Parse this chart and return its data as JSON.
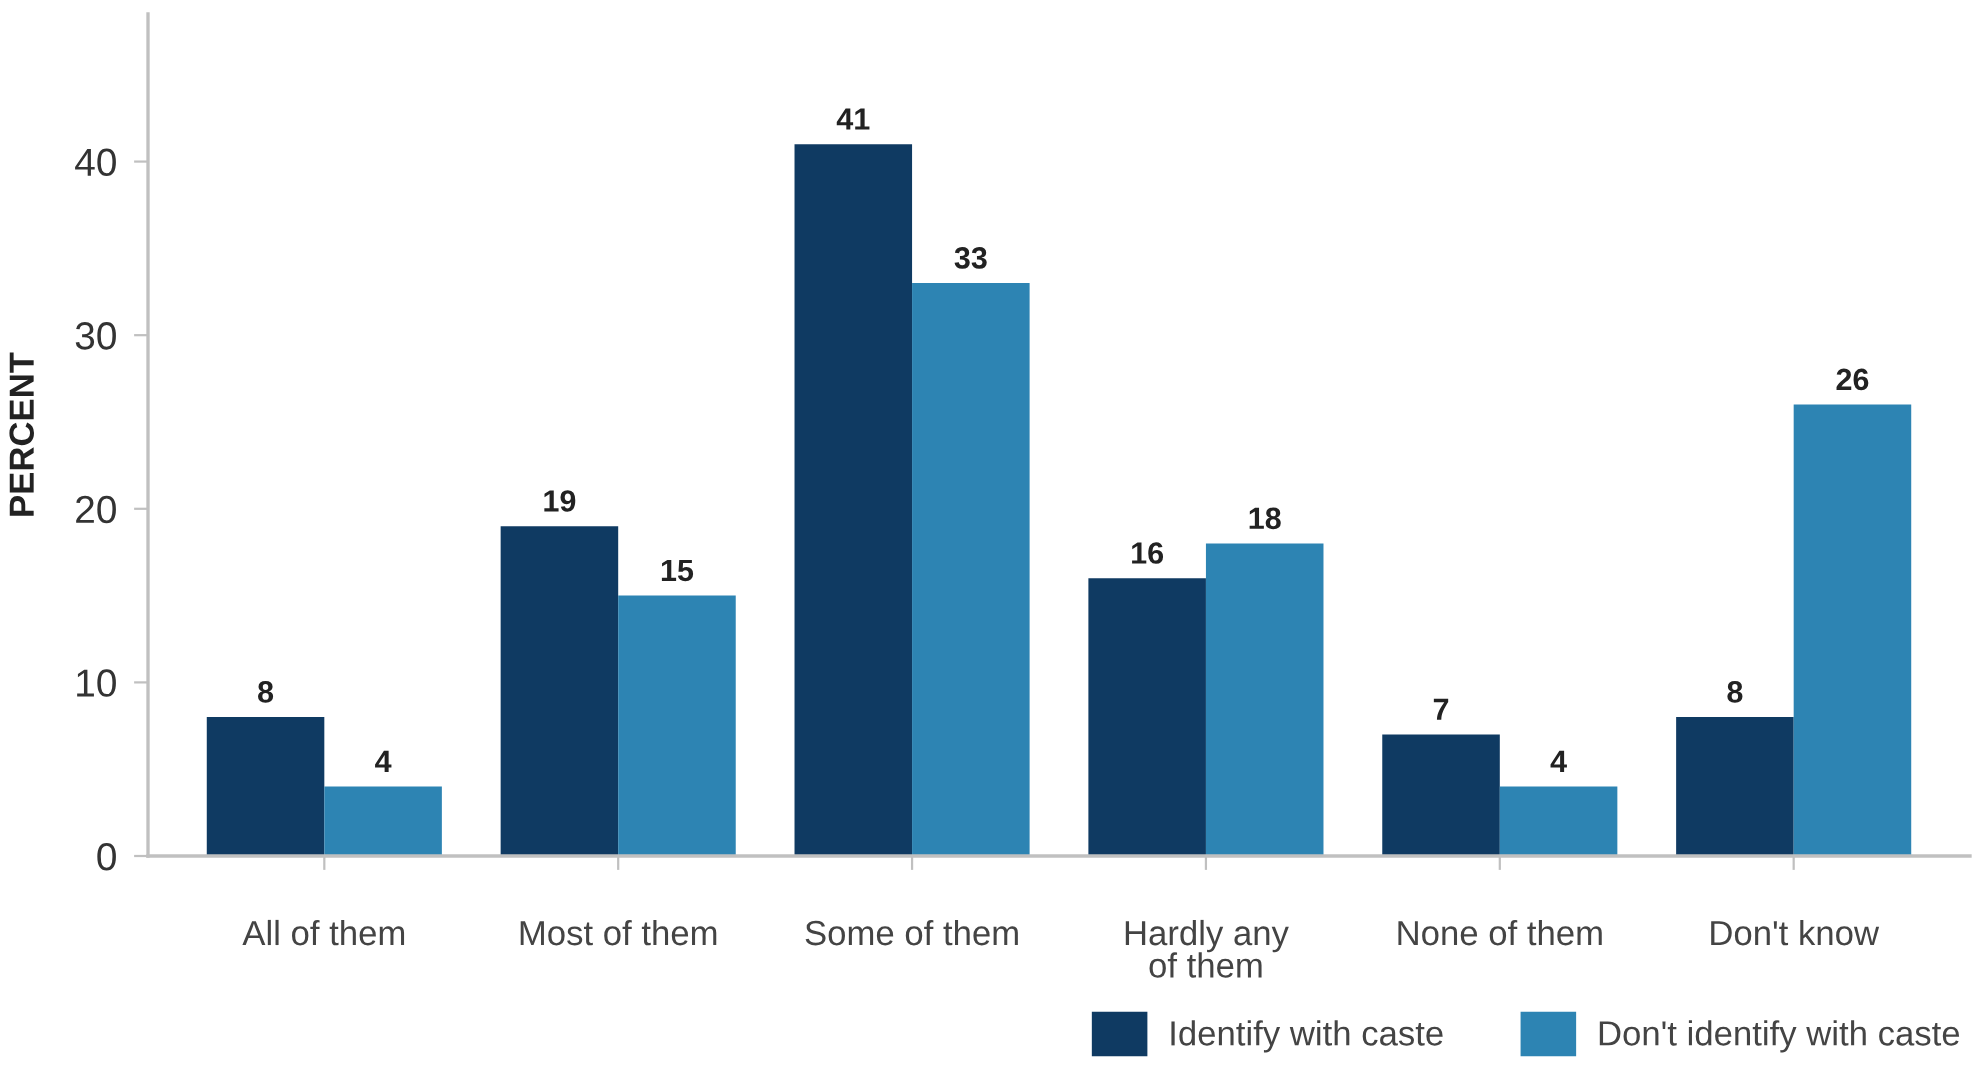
{
  "chart_data": {
    "type": "bar",
    "ylabel": "PERCENT",
    "categories": [
      "All of them",
      "Most of them",
      "Some of them",
      "Hardly any\nof them",
      "None of them",
      "Don't know"
    ],
    "series": [
      {
        "name": "Identify with caste",
        "color": "#0f3a62",
        "values": [
          8,
          19,
          41,
          16,
          7,
          8
        ]
      },
      {
        "name": "Don't identify with caste",
        "color": "#2d84b3",
        "values": [
          4,
          15,
          33,
          18,
          4,
          26
        ]
      }
    ],
    "ylim": [
      0,
      48.5
    ],
    "yticks": [
      0,
      10,
      20,
      30,
      40
    ],
    "data_labels": true,
    "grid": false,
    "legend": "bottom right"
  }
}
